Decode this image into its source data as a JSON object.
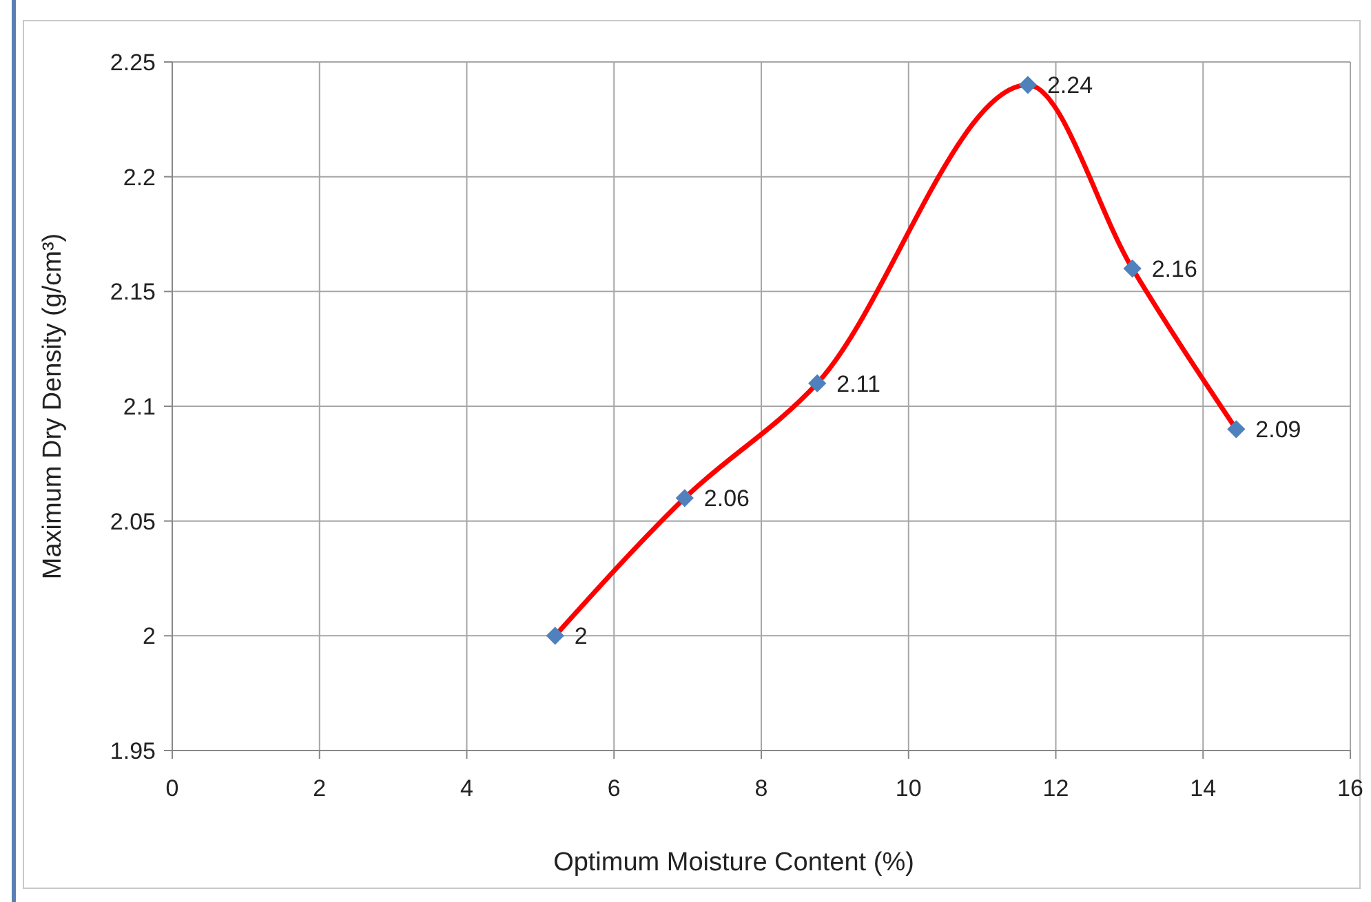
{
  "chart_data": {
    "type": "scatter",
    "xlabel": "Optimum Moisture Content (%)",
    "ylabel": "Maximum Dry Density (g/cm³)",
    "x": [
      5.2,
      6.96,
      8.76,
      11.62,
      13.04,
      14.45
    ],
    "series": [
      {
        "type": "line",
        "color": "#ff0000",
        "values": [
          2,
          2.06,
          2.11,
          2.24,
          2.16,
          2.09
        ],
        "marker": "none"
      },
      {
        "color": "#4f81bd",
        "values": [
          2,
          2.06,
          2.11,
          2.24,
          2.16,
          2.09
        ],
        "marker": "diamond",
        "value_labels": [
          "2",
          "2.06",
          "2.11",
          "2.24",
          "2.16",
          "2.09"
        ]
      }
    ],
    "xlim": [
      0,
      16
    ],
    "xticks": [
      0,
      2,
      4,
      6,
      8,
      10,
      12,
      14,
      16
    ],
    "ylim": [
      1.95,
      2.25
    ],
    "yticks": [
      1.95,
      2,
      2.05,
      2.1,
      2.15,
      2.2,
      2.25
    ],
    "grid": true,
    "line_style": "solid"
  }
}
